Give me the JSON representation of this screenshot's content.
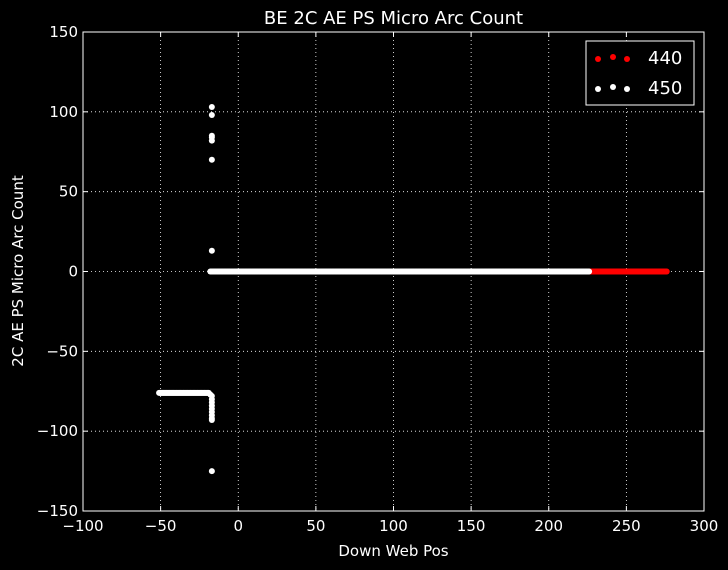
{
  "chart_data": {
    "type": "scatter",
    "title": "BE 2C AE PS Micro Arc Count",
    "xlabel": "Down Web Pos",
    "ylabel": "2C AE PS Micro Arc Count",
    "xlim": [
      -100,
      300
    ],
    "ylim": [
      -150,
      150
    ],
    "xticks": [
      -100,
      -50,
      0,
      50,
      100,
      150,
      200,
      250,
      300
    ],
    "yticks": [
      -150,
      -100,
      -50,
      0,
      50,
      100,
      150
    ],
    "xtick_labels": [
      "−100",
      "−50",
      "0",
      "50",
      "100",
      "150",
      "200",
      "250",
      "300"
    ],
    "ytick_labels": [
      "−150",
      "−100",
      "−50",
      "0",
      "50",
      "100",
      "150"
    ],
    "grid": true,
    "legend_position": "top-right",
    "background": "#000000",
    "series": [
      {
        "name": "440",
        "color": "#ff0000",
        "segments": [
          {
            "x_start": 226,
            "x_end": 276,
            "step": 0.5,
            "y": 0
          }
        ],
        "points": []
      },
      {
        "name": "450",
        "color": "#ffffff",
        "segments": [
          {
            "x_start": -18,
            "x_end": 226,
            "step": 0.5,
            "y": 0
          },
          {
            "x_start": -51,
            "x_end": -19,
            "step": 0.5,
            "y": -76
          }
        ],
        "points": [
          {
            "x": -17,
            "y": 103
          },
          {
            "x": -17,
            "y": 98
          },
          {
            "x": -17,
            "y": 85
          },
          {
            "x": -17,
            "y": 84
          },
          {
            "x": -17,
            "y": 82
          },
          {
            "x": -17,
            "y": 70
          },
          {
            "x": -17,
            "y": 13
          },
          {
            "x": -17,
            "y": -125
          },
          {
            "x": -18,
            "y": -77
          },
          {
            "x": -17,
            "y": -78
          },
          {
            "x": -17,
            "y": -80
          },
          {
            "x": -17,
            "y": -82
          },
          {
            "x": -17,
            "y": -84
          },
          {
            "x": -17,
            "y": -86
          },
          {
            "x": -17,
            "y": -88
          },
          {
            "x": -17,
            "y": -90
          },
          {
            "x": -17,
            "y": -92
          },
          {
            "x": -17,
            "y": -93
          }
        ]
      }
    ]
  }
}
